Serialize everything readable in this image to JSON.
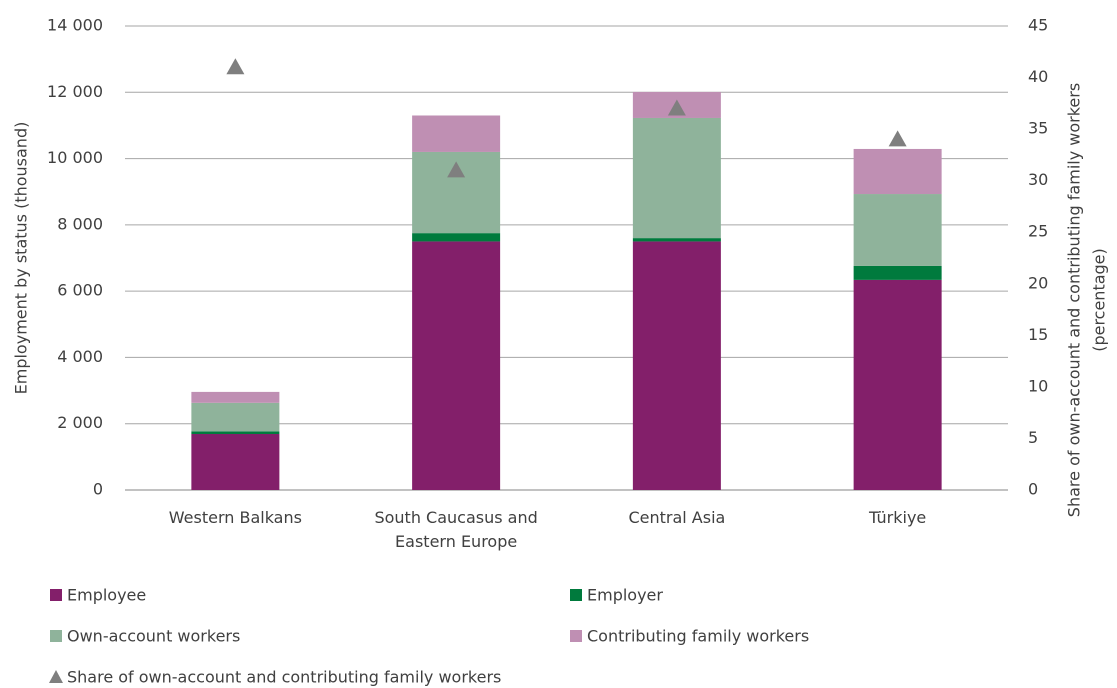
{
  "chart_data": {
    "type": "bar",
    "stacked": true,
    "y_label": "Employment by status (thousand)",
    "y2_label": [
      "Share of own-account and contributing family workers",
      "(percentage)"
    ],
    "categories": [
      "Western Balkans",
      "South Caucasus and Eastern Europe",
      "Central Asia",
      "Türkiye"
    ],
    "series": [
      {
        "name": "Employee",
        "color": "#831f6a",
        "values": [
          1690,
          7500,
          7500,
          6340
        ]
      },
      {
        "name": "Employer",
        "color": "#007a3d",
        "values": [
          80,
          250,
          100,
          420
        ]
      },
      {
        "name": "Own-account workers",
        "color": "#8fb39b",
        "values": [
          860,
          2450,
          3625,
          2170
        ]
      },
      {
        "name": "Contributing family workers",
        "color": "#bf8fb3",
        "values": [
          330,
          1100,
          785,
          1360
        ]
      },
      {
        "name": "Share of own-account and contributing family workers",
        "color": "#7f7f7f",
        "axis": "y2",
        "marker": "triangle",
        "values": [
          41,
          31,
          37,
          34
        ]
      }
    ],
    "ylim": [
      0,
      14000
    ],
    "yticks": [
      0,
      {
        "value": 2000,
        "label": "2 000"
      },
      {
        "value": 4000,
        "label": "4 000"
      },
      {
        "value": 6000,
        "label": "6 000"
      },
      {
        "value": 8000,
        "label": "8 000"
      },
      {
        "value": 10000,
        "label": "10 000"
      },
      {
        "value": 12000,
        "label": "12 000"
      },
      {
        "value": 14000,
        "label": "14 000"
      }
    ],
    "y2lim": [
      0,
      45
    ],
    "y2ticks": [
      0,
      5,
      10,
      15,
      20,
      25,
      30,
      35,
      40,
      45
    ],
    "grid": true,
    "legend": "bottom"
  }
}
